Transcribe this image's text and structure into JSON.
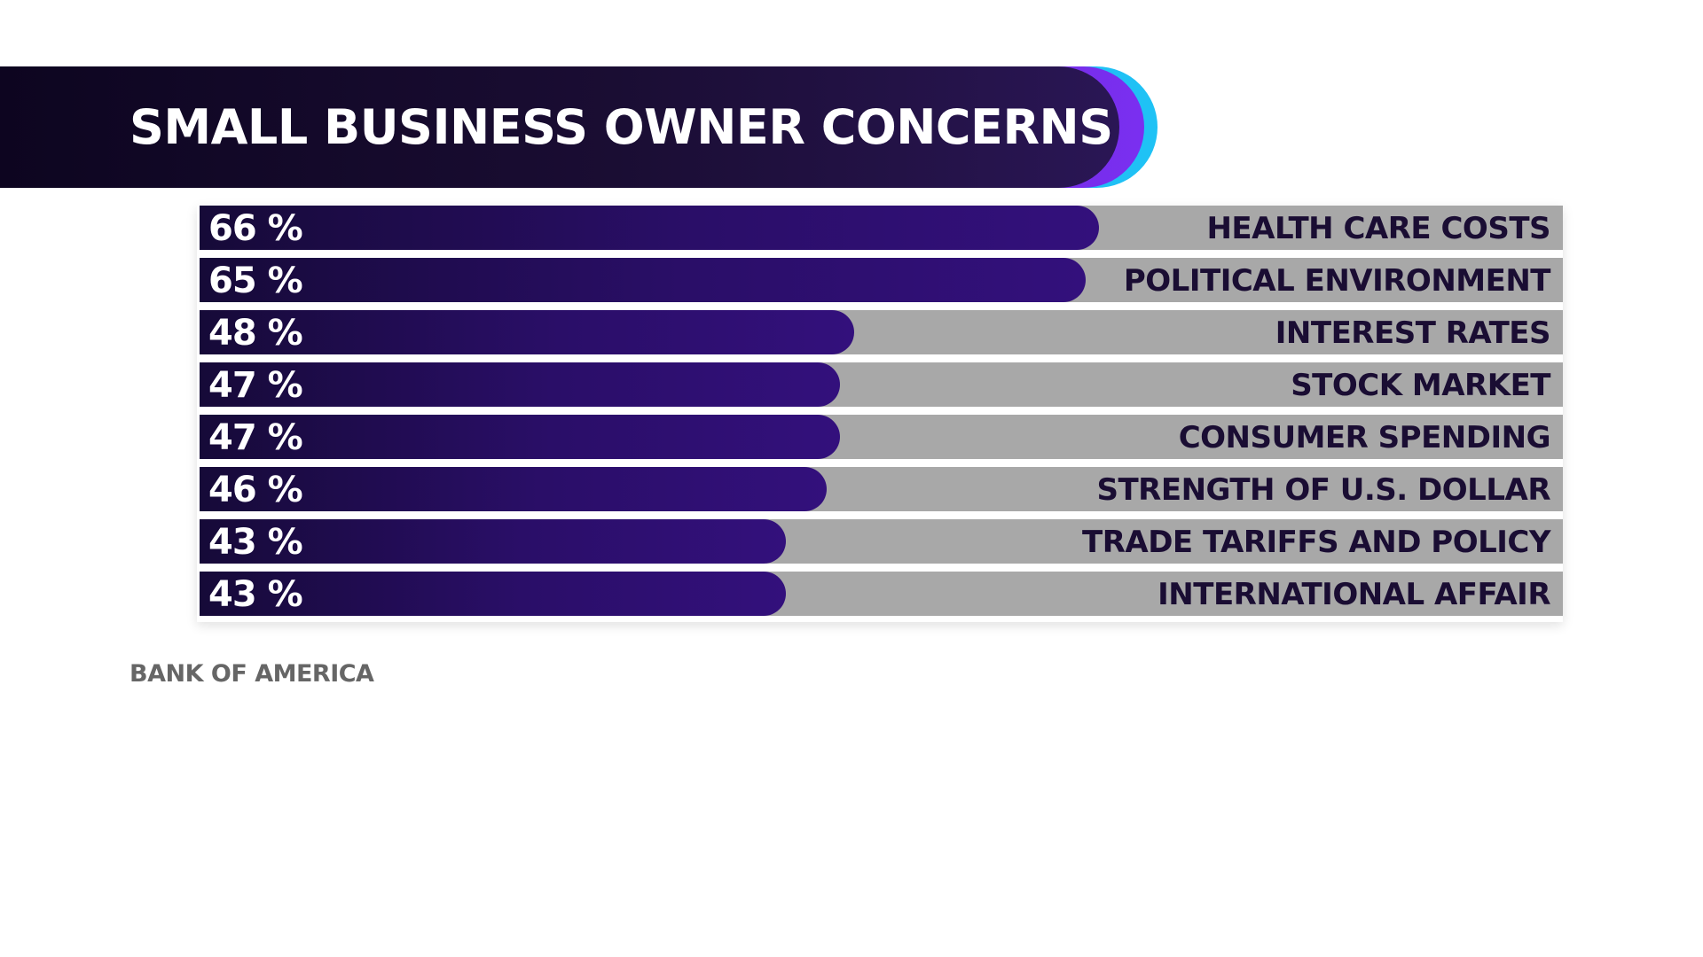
{
  "title": "SMALL BUSINESS OWNER CONCERNS",
  "source": "BANK OF AMERICA",
  "colors": {
    "banner_dark": "#0d0520",
    "banner_purple": "#7a2ff0",
    "banner_cyan": "#1fc2f5",
    "bar_fill": "#2a0e68",
    "bar_track": "#a8a8a8",
    "label_text": "#1a0d33",
    "source_text": "#666666"
  },
  "chart_data": {
    "type": "bar",
    "orientation": "horizontal",
    "categories": [
      "HEALTH CARE COSTS",
      "POLITICAL ENVIRONMENT",
      "INTEREST RATES",
      "STOCK MARKET",
      "CONSUMER SPENDING",
      "STRENGTH OF U.S. DOLLAR",
      "TRADE TARIFFS AND POLICY",
      "INTERNATIONAL AFFAIR"
    ],
    "values": [
      66,
      65,
      48,
      47,
      47,
      46,
      43,
      43
    ],
    "value_labels": [
      "66 %",
      "65 %",
      "48 %",
      "47 %",
      "47 %",
      "46 %",
      "43 %",
      "43 %"
    ],
    "unit": "%",
    "xlim": [
      0,
      100
    ],
    "title": "SMALL BUSINESS OWNER CONCERNS",
    "grid": false,
    "legend": "none"
  }
}
